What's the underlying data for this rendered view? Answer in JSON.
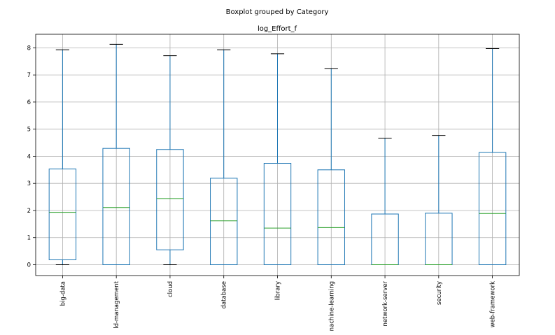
{
  "chart_data": {
    "type": "boxplot",
    "suptitle": "Boxplot grouped by Category",
    "title": "log_Effort_f",
    "xlabel": "",
    "ylabel": "",
    "ylim": [
      -0.4,
      8.5
    ],
    "yticks": [
      0,
      1,
      2,
      3,
      4,
      5,
      6,
      7,
      8
    ],
    "grid": true,
    "categories": [
      "big-data",
      "ld-management",
      "cloud",
      "database",
      "library",
      "nachine-learning",
      "network-server",
      "security",
      "web-framework"
    ],
    "boxes": [
      {
        "category": "big-data",
        "whisker_low": 0,
        "q1": 0.18,
        "median": 1.93,
        "q3": 3.53,
        "whisker_high": 7.93
      },
      {
        "category": "ld-management",
        "whisker_low": 0,
        "q1": 0.0,
        "median": 2.11,
        "q3": 4.29,
        "whisker_high": 8.13
      },
      {
        "category": "cloud",
        "whisker_low": 0,
        "q1": 0.55,
        "median": 2.44,
        "q3": 4.25,
        "whisker_high": 7.71
      },
      {
        "category": "database",
        "whisker_low": 0,
        "q1": 0.0,
        "median": 1.62,
        "q3": 3.19,
        "whisker_high": 7.93
      },
      {
        "category": "library",
        "whisker_low": 0,
        "q1": 0.0,
        "median": 1.35,
        "q3": 3.74,
        "whisker_high": 7.78
      },
      {
        "category": "nachine-learning",
        "whisker_low": 0,
        "q1": 0.0,
        "median": 1.37,
        "q3": 3.5,
        "whisker_high": 7.24
      },
      {
        "category": "network-server",
        "whisker_low": 0,
        "q1": 0.0,
        "median": 0.0,
        "q3": 1.87,
        "whisker_high": 4.67
      },
      {
        "category": "security",
        "whisker_low": 0,
        "q1": 0.0,
        "median": 0.0,
        "q3": 1.9,
        "whisker_high": 4.77
      },
      {
        "category": "web-framework",
        "whisker_low": 0,
        "q1": 0.0,
        "median": 1.89,
        "q3": 4.14,
        "whisker_high": 7.97
      }
    ],
    "colors": {
      "box": "#1f77b4",
      "median": "#2ca02c",
      "cap": "#000000",
      "grid": "#b0b0b0"
    }
  }
}
